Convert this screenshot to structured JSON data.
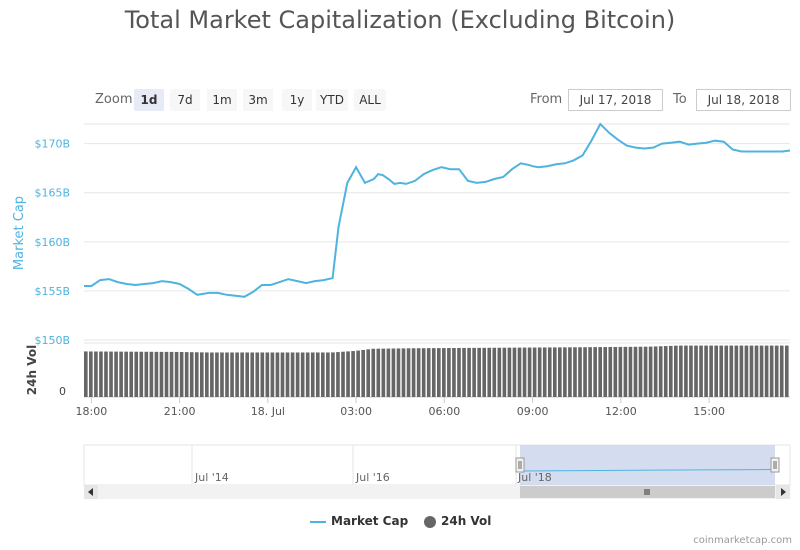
{
  "title": "Total Market Capitalization (Excluding Bitcoin)",
  "zoom": {
    "label": "Zoom",
    "buttons": [
      "1d",
      "7d",
      "1m",
      "3m",
      "1y",
      "YTD",
      "ALL"
    ],
    "active": "1d"
  },
  "range": {
    "from_label": "From",
    "from_value": "Jul 17, 2018",
    "to_label": "To",
    "to_value": "Jul 18, 2018"
  },
  "credit": "coinmarketcap.com",
  "legend": {
    "market_cap": "Market Cap",
    "vol": "24h Vol"
  },
  "colors": {
    "line": "#4fb3e0",
    "bars": "#666666",
    "navigator_mask": "#cfd9ee",
    "axis_text": "#666666"
  },
  "navigator": {
    "ticks": [
      "Jul '14",
      "Jul '16",
      "Jul '18"
    ]
  },
  "chart_data": {
    "type": "line",
    "ylabel": "Market Cap",
    "ylabel2": "24h Vol",
    "y_ticks": [
      "$150B",
      "$155B",
      "$160B",
      "$165B",
      "$170B"
    ],
    "y_tick_values": [
      150,
      155,
      160,
      165,
      170
    ],
    "vol_tick": "0",
    "ylim": [
      150,
      172
    ],
    "xlim": [
      17.75,
      41.75
    ],
    "x_ticks": [
      "18:00",
      "21:00",
      "18. Jul",
      "03:00",
      "06:00",
      "09:00",
      "12:00",
      "15:00"
    ],
    "x_tick_values": [
      18,
      21,
      24,
      27,
      30,
      33,
      36,
      39
    ],
    "grid": true,
    "legend_position": "bottom",
    "series": [
      {
        "name": "Market Cap",
        "x": [
          17.75,
          18.0,
          18.3,
          18.6,
          18.9,
          19.2,
          19.5,
          19.8,
          20.1,
          20.4,
          20.7,
          21.0,
          21.3,
          21.6,
          21.8,
          22.0,
          22.3,
          22.6,
          22.9,
          23.2,
          23.5,
          23.8,
          24.1,
          24.4,
          24.7,
          25.0,
          25.3,
          25.6,
          25.9,
          26.2,
          26.4,
          26.7,
          27.0,
          27.3,
          27.6,
          27.75,
          27.9,
          28.1,
          28.3,
          28.5,
          28.7,
          29.0,
          29.3,
          29.6,
          29.9,
          30.2,
          30.5,
          30.8,
          31.1,
          31.4,
          31.7,
          32.0,
          32.3,
          32.6,
          32.9,
          33.0,
          33.2,
          33.5,
          33.8,
          34.1,
          34.4,
          34.7,
          35.0,
          35.3,
          35.6,
          35.9,
          36.2,
          36.5,
          36.8,
          37.1,
          37.25,
          37.4,
          37.7,
          38.0,
          38.3,
          38.6,
          38.9,
          39.2,
          39.5,
          39.8,
          40.1,
          40.4,
          40.7,
          41.0,
          41.3,
          41.5,
          41.75
        ],
        "values": [
          155.5,
          155.5,
          156.1,
          156.2,
          155.9,
          155.7,
          155.6,
          155.7,
          155.8,
          156.0,
          155.9,
          155.7,
          155.2,
          154.6,
          154.7,
          154.8,
          154.8,
          154.6,
          154.5,
          154.4,
          154.9,
          155.6,
          155.6,
          155.9,
          156.2,
          156.0,
          155.8,
          156.0,
          156.1,
          156.3,
          161.5,
          166.0,
          167.6,
          166.0,
          166.4,
          166.9,
          166.8,
          166.4,
          165.9,
          166.0,
          165.9,
          166.2,
          166.9,
          167.3,
          167.6,
          167.4,
          167.4,
          166.2,
          166.0,
          166.1,
          166.4,
          166.6,
          167.4,
          168.0,
          167.8,
          167.7,
          167.6,
          167.7,
          167.9,
          168.0,
          168.3,
          168.8,
          170.3,
          172.0,
          171.1,
          170.4,
          169.8,
          169.6,
          169.5,
          169.6,
          169.8,
          170.0,
          170.1,
          170.2,
          169.9,
          170.0,
          170.1,
          170.3,
          170.2,
          169.4,
          169.2,
          169.2,
          169.2,
          169.2,
          169.2,
          169.2,
          169.3
        ]
      },
      {
        "name": "24h Vol",
        "bar_count": 140,
        "levels_x": [
          17.75,
          21.0,
          22.0,
          26.2,
          27.0,
          27.6,
          29.0,
          32.0,
          35.0,
          37.0,
          38.0,
          41.75
        ],
        "levels": [
          0.86,
          0.85,
          0.84,
          0.84,
          0.87,
          0.91,
          0.92,
          0.93,
          0.94,
          0.95,
          0.97,
          0.97
        ]
      }
    ]
  }
}
